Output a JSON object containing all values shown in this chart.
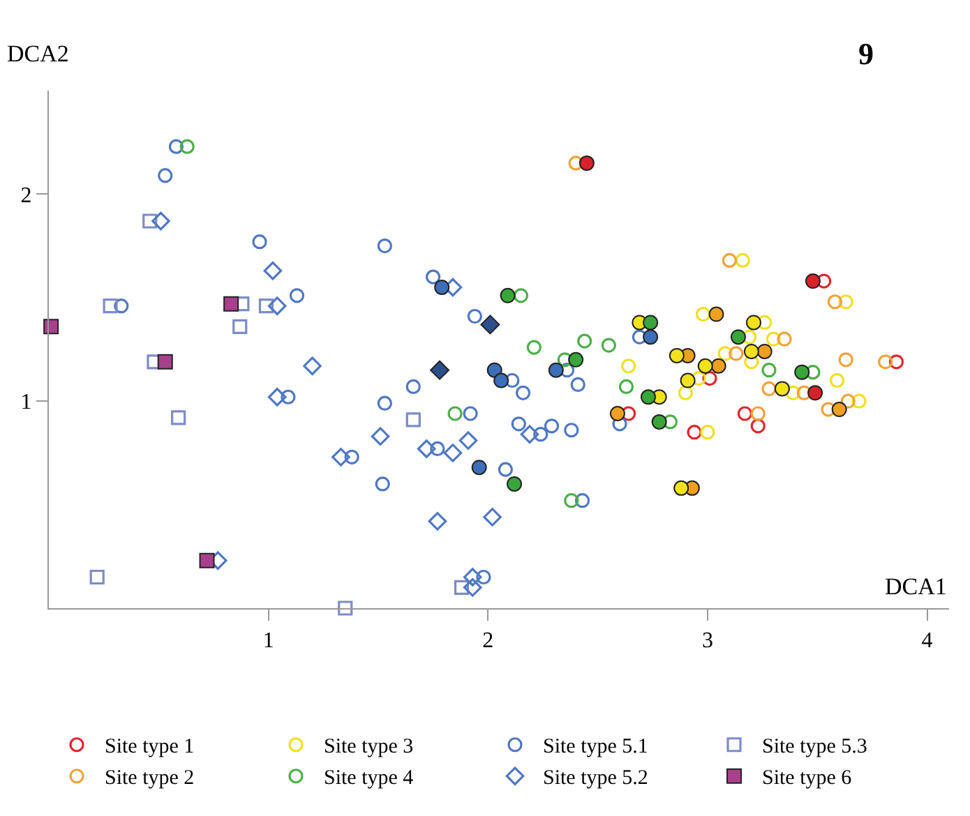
{
  "chart_data": {
    "type": "scatter",
    "title": "9",
    "xlabel": "DCA1",
    "ylabel": "DCA2",
    "xlim": [
      0,
      4.1
    ],
    "ylim": [
      0,
      2.5
    ],
    "xticks": [
      1,
      2,
      3,
      4
    ],
    "yticks": [
      1,
      2
    ],
    "grid": false,
    "legend": "bottom",
    "series": [
      {
        "name": "Site type 1",
        "color": "#e0262b",
        "marker": "circle-open",
        "x": [
          3.53,
          3.86,
          3.01,
          2.64,
          3.17,
          3.23,
          2.94
        ],
        "values": [
          1.58,
          1.19,
          1.11,
          0.94,
          0.94,
          0.88,
          0.85
        ]
      },
      {
        "name": "Site type 3",
        "color": "#f0e020",
        "marker": "circle-open",
        "x": [
          3.16,
          3.63,
          2.98,
          3.26,
          3.19,
          3.3,
          3.08,
          3.2,
          2.64,
          2.96,
          2.9,
          3.59,
          3.39,
          3.69,
          3.0
        ],
        "values": [
          1.68,
          1.48,
          1.42,
          1.38,
          1.31,
          1.3,
          1.23,
          1.19,
          1.17,
          1.11,
          1.04,
          1.1,
          1.04,
          1.0,
          0.85
        ]
      },
      {
        "name": "Site type 5.1",
        "color": "#4f78c4",
        "marker": "circle-open",
        "x": [
          0.58,
          0.53,
          0.96,
          1.13,
          0.33,
          1.09,
          1.53,
          1.75,
          1.94,
          2.11,
          2.16,
          2.36,
          2.41,
          1.66,
          1.53,
          1.92,
          2.14,
          2.24,
          2.29,
          2.38,
          1.38,
          1.77,
          2.08,
          1.52,
          2.43,
          1.98,
          2.69,
          2.6
        ],
        "values": [
          2.23,
          2.09,
          1.77,
          1.51,
          1.46,
          1.02,
          1.75,
          1.6,
          1.41,
          1.1,
          1.04,
          1.15,
          1.08,
          1.07,
          0.99,
          0.94,
          0.89,
          0.84,
          0.88,
          0.86,
          0.73,
          0.77,
          0.67,
          0.6,
          0.52,
          0.15,
          1.31,
          0.89
        ]
      },
      {
        "name": "Site type 5.3",
        "color": "#7d8cc8",
        "marker": "square-open",
        "x": [
          0.46,
          0.28,
          0.88,
          0.99,
          0.87,
          0.48,
          0.59,
          0.22,
          1.66,
          1.88,
          1.35
        ],
        "values": [
          1.87,
          1.46,
          1.47,
          1.46,
          1.36,
          1.19,
          0.92,
          0.15,
          0.91,
          0.1,
          0.0
        ]
      },
      {
        "name": "Site type 2",
        "color": "#f2a23a",
        "marker": "circle-open",
        "x": [
          2.4,
          3.1,
          3.58,
          3.35,
          3.13,
          3.63,
          3.81,
          3.28,
          3.44,
          3.64,
          3.55,
          3.23
        ],
        "values": [
          2.15,
          1.68,
          1.48,
          1.3,
          1.23,
          1.2,
          1.19,
          1.06,
          1.04,
          1.0,
          0.96,
          0.94
        ]
      },
      {
        "name": "Site type 4",
        "color": "#4caf48",
        "marker": "circle-open",
        "x": [
          0.63,
          2.15,
          2.21,
          2.44,
          2.55,
          2.35,
          1.85,
          2.38,
          3.28,
          3.48,
          2.63,
          2.83
        ],
        "values": [
          2.23,
          1.51,
          1.26,
          1.29,
          1.27,
          1.2,
          0.94,
          0.52,
          1.15,
          1.14,
          1.07,
          0.9
        ]
      },
      {
        "name": "Site type 5.2",
        "color": "#4f78c4",
        "marker": "diamond-open",
        "x": [
          0.51,
          1.02,
          1.04,
          1.2,
          1.04,
          0.77,
          1.84,
          1.51,
          1.33,
          1.72,
          1.84,
          1.91,
          1.77,
          2.02,
          1.93,
          1.93,
          2.19
        ],
        "values": [
          1.87,
          1.63,
          1.46,
          1.17,
          1.02,
          0.23,
          1.55,
          0.83,
          0.73,
          0.77,
          0.75,
          0.81,
          0.42,
          0.44,
          0.1,
          0.15,
          0.84
        ]
      },
      {
        "name": "Site type 6",
        "color": "#a8408e",
        "marker": "square",
        "x": [
          0.01,
          0.83,
          0.53,
          0.72
        ],
        "values": [
          1.36,
          1.47,
          1.19,
          0.23
        ]
      },
      {
        "color": "#d8222a",
        "marker": "circle",
        "x": [
          2.45,
          3.48,
          3.49
        ],
        "values": [
          2.15,
          1.58,
          1.04
        ]
      },
      {
        "color": "#f0a020",
        "marker": "circle",
        "x": [
          3.04,
          2.91,
          3.26,
          3.05,
          3.6,
          2.59,
          2.93
        ],
        "values": [
          1.42,
          1.22,
          1.24,
          1.17,
          0.96,
          0.94,
          0.58
        ]
      },
      {
        "color": "#f2e21a",
        "marker": "circle",
        "x": [
          2.69,
          3.21,
          2.86,
          3.2,
          2.99,
          2.91,
          3.34,
          2.78,
          2.88
        ],
        "values": [
          1.38,
          1.38,
          1.22,
          1.24,
          1.17,
          1.1,
          1.06,
          1.02,
          0.58
        ]
      },
      {
        "color": "#3aa63a",
        "marker": "circle",
        "x": [
          2.09,
          2.4,
          2.12,
          2.74,
          3.14,
          3.43,
          2.73,
          2.78
        ],
        "values": [
          1.51,
          1.2,
          0.6,
          1.38,
          1.31,
          1.14,
          1.02,
          0.9
        ]
      },
      {
        "color": "#3d6eb8",
        "marker": "circle",
        "x": [
          1.79,
          2.03,
          2.06,
          2.31,
          1.96,
          2.74
        ],
        "values": [
          1.55,
          1.15,
          1.1,
          1.15,
          0.68,
          1.31
        ]
      },
      {
        "color": "#2d4f8a",
        "marker": "diamond",
        "x": [
          2.01,
          1.78
        ],
        "values": [
          1.37,
          1.15
        ]
      }
    ]
  }
}
